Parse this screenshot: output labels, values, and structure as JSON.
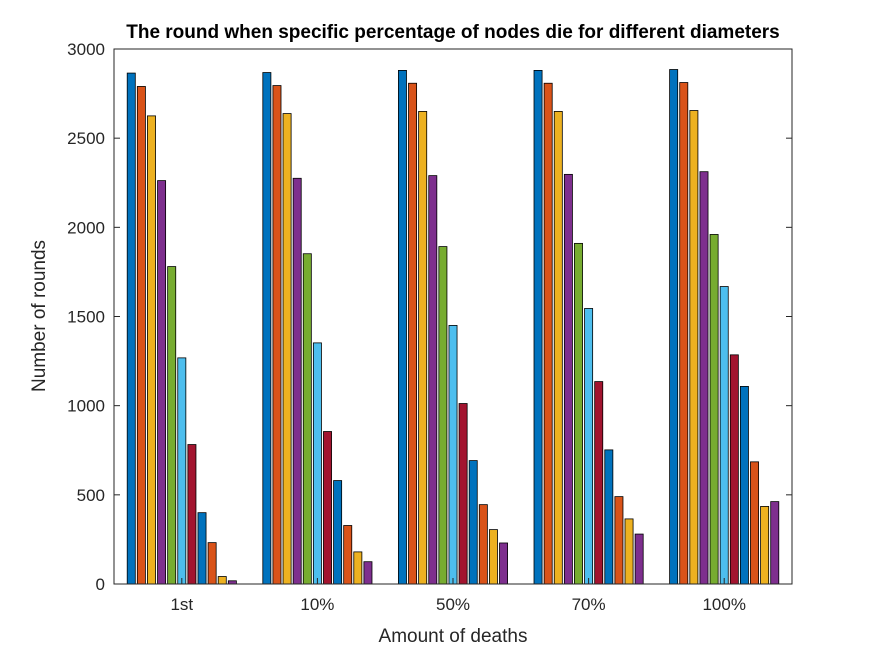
{
  "chart_data": {
    "type": "bar",
    "title": "The round when specific percentage of nodes die for different diameters",
    "xlabel": "Amount of deaths",
    "ylabel": "Number of rounds",
    "categories": [
      "1st",
      "10%",
      "50%",
      "70%",
      "100%"
    ],
    "ylim": [
      0,
      3000
    ],
    "yticks": [
      0,
      500,
      1000,
      1500,
      2000,
      2500,
      3000
    ],
    "grid": false,
    "legend": "none",
    "colors": [
      "#0072BD",
      "#D95319",
      "#EDB120",
      "#7E2F8E",
      "#77AC30",
      "#4DBEEE",
      "#A2142F",
      "#0072BD",
      "#D95319",
      "#EDB120",
      "#7E2F8E"
    ],
    "series": [
      {
        "values": [
          2865,
          2868,
          2880,
          2880,
          2885
        ]
      },
      {
        "values": [
          2790,
          2795,
          2808,
          2808,
          2812
        ]
      },
      {
        "values": [
          2625,
          2638,
          2650,
          2650,
          2655
        ]
      },
      {
        "values": [
          2262,
          2275,
          2290,
          2297,
          2312
        ]
      },
      {
        "values": [
          1780,
          1852,
          1892,
          1910,
          1960
        ]
      },
      {
        "values": [
          1268,
          1352,
          1450,
          1545,
          1668
        ]
      },
      {
        "values": [
          782,
          855,
          1012,
          1135,
          1285
        ]
      },
      {
        "values": [
          400,
          580,
          692,
          752,
          1108
        ]
      },
      {
        "values": [
          232,
          328,
          445,
          490,
          685
        ]
      },
      {
        "values": [
          42,
          180,
          305,
          365,
          435
        ]
      },
      {
        "values": [
          18,
          125,
          230,
          280,
          462
        ]
      }
    ]
  }
}
